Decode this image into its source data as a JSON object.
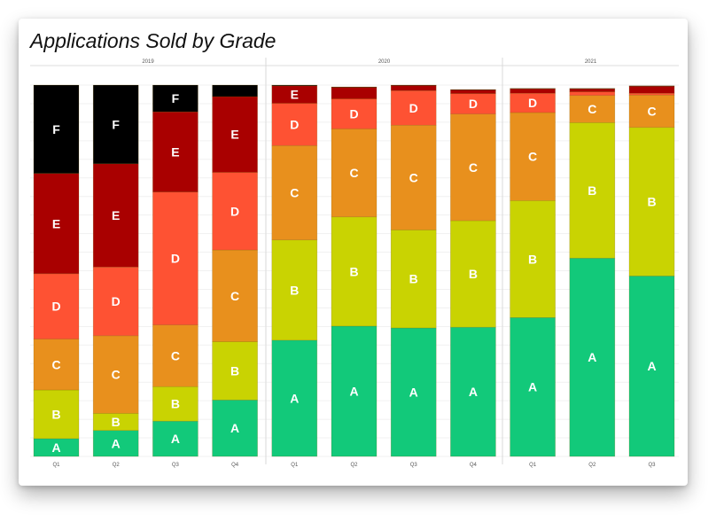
{
  "title": "Applications Sold by Grade",
  "chart_data": {
    "type": "bar",
    "stacked": true,
    "normalized": true,
    "title": "Applications Sold by Grade",
    "xlabel": "",
    "ylabel": "",
    "ylim": [
      0,
      100
    ],
    "grid": true,
    "legend": "none",
    "groups": [
      {
        "label": "2019",
        "quarters": [
          "Q1",
          "Q2",
          "Q3",
          "Q4"
        ]
      },
      {
        "label": "2020",
        "quarters": [
          "Q1",
          "Q2",
          "Q3",
          "Q4"
        ]
      },
      {
        "label": "2021",
        "quarters": [
          "Q1",
          "Q2",
          "Q3"
        ]
      }
    ],
    "categories": [
      "2019 Q1",
      "2019 Q2",
      "2019 Q3",
      "2019 Q4",
      "2020 Q1",
      "2020 Q2",
      "2020 Q3",
      "2020 Q4",
      "2021 Q1",
      "2021 Q2",
      "2021 Q3"
    ],
    "series": [
      {
        "name": "A",
        "color": "#12c97a",
        "values": [
          4.8,
          7.0,
          9.5,
          15.2,
          31.3,
          35.1,
          34.6,
          34.8,
          37.4,
          53.4,
          48.6
        ]
      },
      {
        "name": "B",
        "color": "#c9d302",
        "values": [
          13.1,
          4.6,
          9.3,
          15.7,
          27.0,
          29.4,
          26.4,
          28.7,
          31.5,
          36.5,
          40.0
        ]
      },
      {
        "name": "C",
        "color": "#e8901d",
        "values": [
          13.7,
          20.9,
          16.6,
          24.7,
          25.4,
          23.7,
          28.2,
          28.7,
          23.7,
          7.3,
          8.7
        ]
      },
      {
        "name": "D",
        "color": "#fe5233",
        "values": [
          17.6,
          18.5,
          35.8,
          20.9,
          11.4,
          8.1,
          9.3,
          5.5,
          5.2,
          1.0,
          0.5
        ]
      },
      {
        "name": "E",
        "color": "#a90000",
        "values": [
          27.0,
          27.8,
          21.6,
          20.4,
          4.7,
          3.1,
          1.4,
          1.0,
          1.2,
          0.8,
          1.9
        ]
      },
      {
        "name": "F",
        "color": "#000000",
        "values": [
          23.8,
          21.2,
          7.2,
          3.1,
          0.2,
          0.1,
          0.1,
          0.1,
          0.1,
          0.1,
          0.1
        ]
      }
    ]
  }
}
